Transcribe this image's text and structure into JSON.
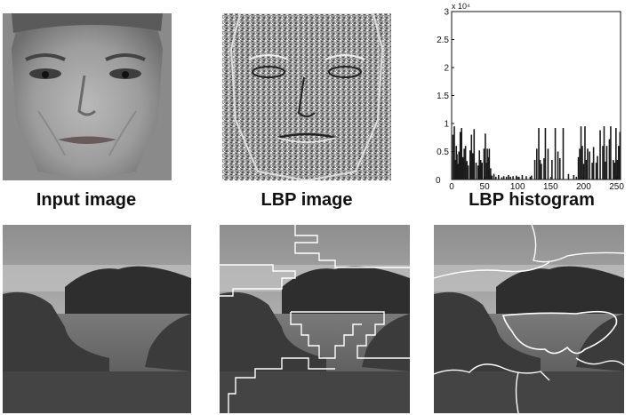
{
  "captions": {
    "input": "Input image",
    "lbp_image": "LBP image",
    "lbp_histogram": "LBP histogram"
  },
  "chart_data": {
    "type": "bar",
    "title": "LBP histogram",
    "xlabel": "",
    "ylabel": "",
    "y_multiplier": "x 10⁴",
    "xlim": [
      0,
      256
    ],
    "ylim": [
      0,
      3
    ],
    "x_ticks": [
      "0",
      "50",
      "100",
      "150",
      "200",
      "250"
    ],
    "y_ticks": [
      "0.5",
      "1",
      "1.5",
      "2",
      "2.5",
      "3"
    ],
    "x": [
      1,
      3,
      4,
      6,
      7,
      8,
      10,
      12,
      14,
      16,
      18,
      20,
      22,
      24,
      27,
      29,
      31,
      33,
      36,
      39,
      41,
      43,
      45,
      48,
      50,
      52,
      53,
      55,
      56,
      58,
      60,
      63,
      66,
      70,
      75,
      78,
      82,
      85,
      88,
      92,
      97,
      101,
      106,
      112,
      118,
      120,
      125,
      128,
      131,
      133,
      135,
      139,
      141,
      145,
      151,
      156,
      160,
      163,
      168,
      176,
      184,
      188,
      191,
      193,
      195,
      197,
      199,
      201,
      203,
      205,
      208,
      212,
      214,
      218,
      220,
      224,
      228,
      230,
      232,
      234,
      238,
      240,
      244,
      246,
      248,
      250,
      252,
      254
    ],
    "values": [
      0.8,
      0.95,
      0.35,
      0.6,
      0.45,
      0.28,
      0.5,
      0.85,
      0.92,
      0.4,
      0.55,
      0.6,
      0.33,
      0.25,
      0.52,
      0.8,
      0.47,
      0.9,
      0.3,
      0.25,
      0.52,
      0.35,
      0.3,
      0.55,
      0.82,
      0.3,
      0.55,
      0.4,
      0.55,
      0.2,
      0.07,
      0.1,
      0.05,
      0.08,
      0.04,
      0.06,
      0.05,
      0.08,
      0.05,
      0.06,
      0.07,
      0.05,
      0.08,
      0.06,
      0.05,
      0.07,
      0.35,
      0.55,
      0.92,
      0.35,
      0.28,
      0.38,
      0.92,
      0.55,
      0.35,
      0.92,
      0.5,
      0.38,
      0.92,
      0.1,
      0.08,
      0.05,
      0.4,
      0.55,
      0.95,
      0.6,
      0.28,
      0.95,
      0.35,
      0.55,
      0.5,
      0.3,
      0.58,
      0.3,
      0.42,
      0.88,
      0.6,
      0.95,
      0.32,
      0.6,
      0.72,
      0.95,
      0.35,
      0.3,
      0.92,
      0.35,
      0.6,
      0.85
    ]
  },
  "colors": {
    "bar": "#1a1a1a",
    "axis": "#111111",
    "boundary": "#ffffff"
  }
}
